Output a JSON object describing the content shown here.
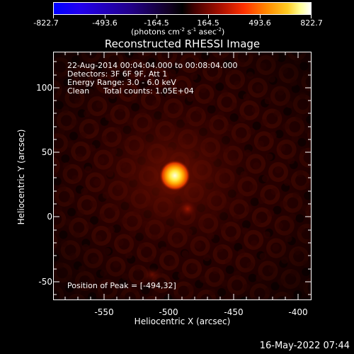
{
  "colorbar": {
    "ticks": [
      "-822.7",
      "-493.6",
      "-164.5",
      "164.5",
      "493.6",
      "822.7"
    ],
    "units_parts": [
      "(photons cm",
      "-2",
      " s",
      "-1",
      " asec",
      "-2",
      ")"
    ]
  },
  "title": "Reconstructed RHESSI Image",
  "info": {
    "line1": "22-Aug-2014 00:04:04.000 to 00:08:04.000",
    "line2": "Detectors: 3F 6F 9F, Att 1",
    "line3": "Energy Range: 3.0 - 6.0 keV",
    "line4_a": "Clean",
    "line4_b": "Total counts: 1.05E+04",
    "peak": "Position of Peak = [-494,32]"
  },
  "axes": {
    "xlabel": "Heliocentric X (arcsec)",
    "ylabel": "Heliocentric Y (arcsec)",
    "xticks": [
      "-550",
      "-500",
      "-450",
      "-400"
    ],
    "yticks": [
      "100",
      "50",
      "0",
      "-50"
    ],
    "x_range": [
      -590,
      -400
    ],
    "y_range": [
      -65,
      118
    ]
  },
  "image": {
    "peak_position": [
      -494,
      32
    ],
    "colormap": "blue-black-red-yellow-white"
  },
  "timestamp": "16-May-2022 07:44"
}
